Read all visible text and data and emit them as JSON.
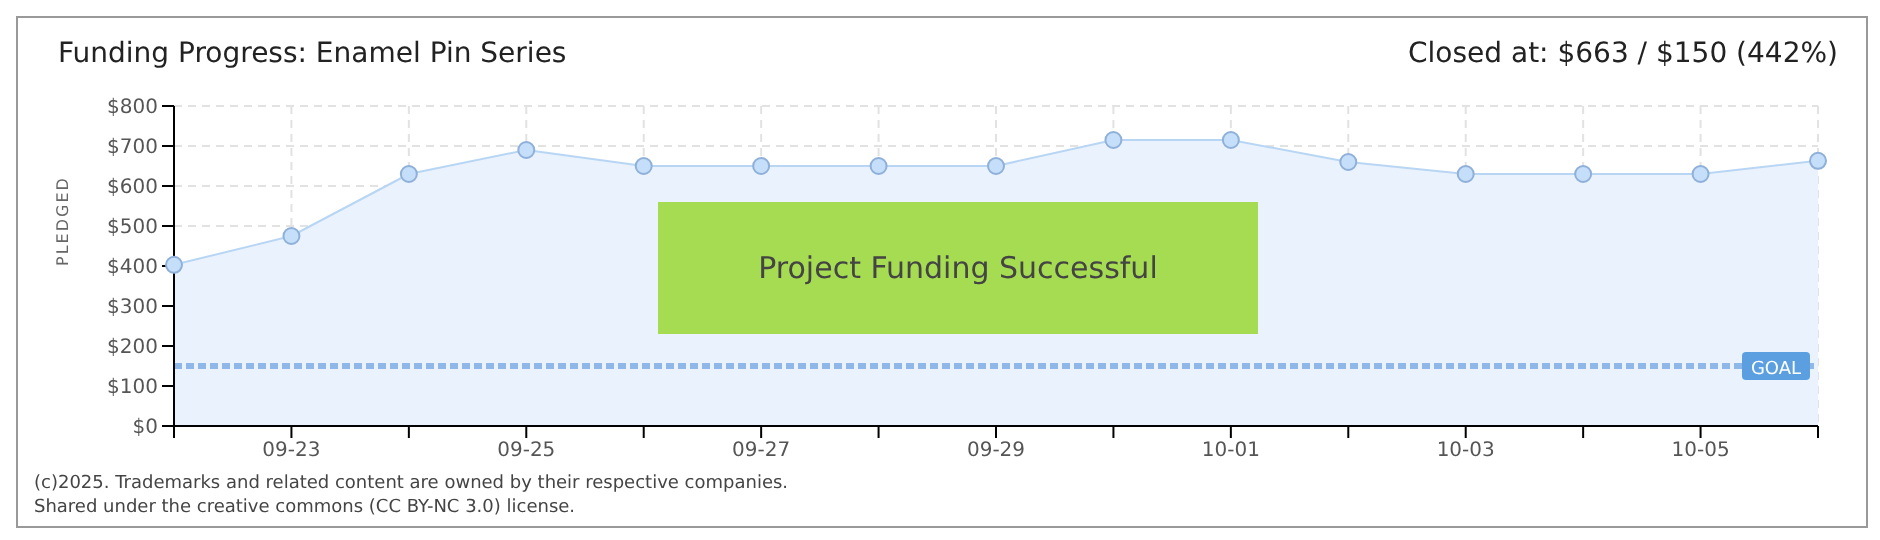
{
  "chart_data": {
    "type": "area",
    "title": "Funding Progress: Enamel Pin Series",
    "subtitle": "Closed at: $663 / $150 (442%)",
    "ylabel": "PLEDGED",
    "categories": [
      null,
      "09-23",
      null,
      "09-25",
      null,
      "09-27",
      null,
      "09-29",
      null,
      "10-01",
      null,
      "10-03",
      null,
      "10-05",
      null
    ],
    "series": [
      {
        "color": "#b8d6f4",
        "values": [
          403,
          475,
          630,
          690,
          650,
          650,
          650,
          650,
          715,
          715,
          660,
          630,
          630,
          630,
          663
        ]
      }
    ],
    "ylim": [
      0,
      800
    ],
    "yticks": [
      {
        "value": 0,
        "label": "$0"
      },
      {
        "value": 100,
        "label": "$100"
      },
      {
        "value": 200,
        "label": "$200"
      },
      {
        "value": 300,
        "label": "$300"
      },
      {
        "value": 400,
        "label": "$400"
      },
      {
        "value": 500,
        "label": "$500"
      },
      {
        "value": 600,
        "label": "$600"
      },
      {
        "value": 700,
        "label": "$700"
      },
      {
        "value": 800,
        "label": "$800"
      }
    ],
    "ref_lines": [
      {
        "axis": "y",
        "value": 150,
        "label": "GOAL",
        "color": "#8fb8e8",
        "line_style": "dashed"
      }
    ],
    "annotations": [
      "Project Funding Successful",
      "(c)2025. Trademarks and related content are owned by their respective companies.",
      "Shared under the creative commons (CC BY-NC 3.0) license."
    ],
    "grid": true,
    "marker": "circle"
  }
}
